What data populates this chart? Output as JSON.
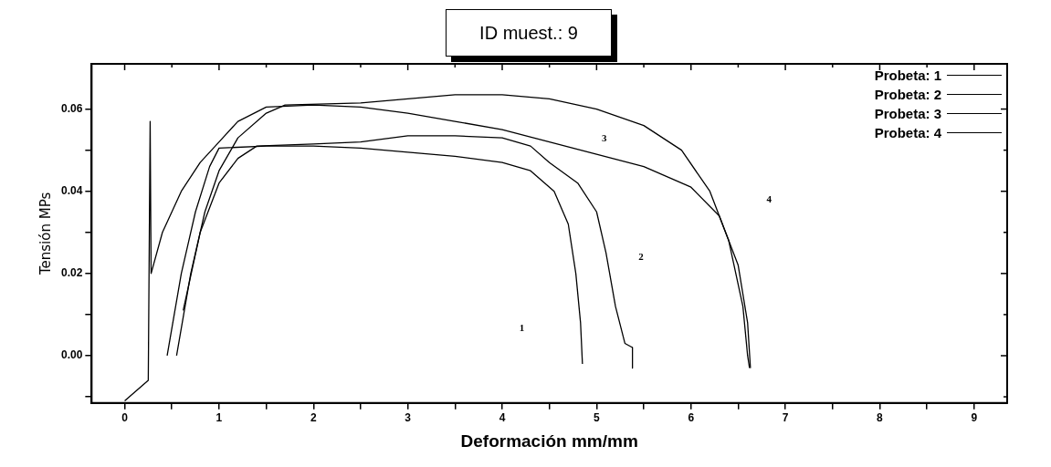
{
  "chart_data": {
    "type": "line",
    "title": "ID muest.: 9",
    "xlabel": "Deformación mm/mm",
    "ylabel": "Tensión MPs",
    "xlim": [
      -0.35,
      9.35
    ],
    "xticks": [
      0,
      {
        "value": 0.5,
        "label": null
      },
      1,
      {
        "value": 1.5,
        "label": null
      },
      2,
      {
        "value": 2.5,
        "label": null
      },
      3,
      {
        "value": 3.5,
        "label": null
      },
      4,
      {
        "value": 4.5,
        "label": null
      },
      5,
      {
        "value": 5.5,
        "label": null
      },
      6,
      {
        "value": 6.5,
        "label": null
      },
      7,
      {
        "value": 7.5,
        "label": null
      },
      8,
      {
        "value": 8.5,
        "label": null
      },
      9
    ],
    "ylim": [
      -0.0115,
      0.071
    ],
    "yticks": [
      {
        "value": -0.01,
        "label": null
      },
      {
        "value": 0,
        "label": "0.00"
      },
      {
        "value": 0.01,
        "label": null
      },
      {
        "value": 0.02,
        "label": "0.02"
      },
      {
        "value": 0.03,
        "label": null
      },
      {
        "value": 0.04,
        "label": "0.04"
      },
      {
        "value": 0.05,
        "label": null
      },
      {
        "value": 0.06,
        "label": "0.06"
      }
    ],
    "grid": false,
    "legend": "top right",
    "marker": "none",
    "line_style": "solid",
    "series": [
      {
        "name": "Probeta: 1",
        "color": "#000000",
        "x": [
          0.45,
          0.6,
          0.75,
          0.9,
          1.0,
          1.5,
          2,
          2.5,
          3,
          3.5,
          4,
          4.3,
          4.55,
          4.7,
          4.78,
          4.83,
          4.85
        ],
        "values": [
          0.0,
          0.02,
          0.035,
          0.046,
          0.0505,
          0.051,
          0.051,
          0.0505,
          0.0495,
          0.0485,
          0.047,
          0.045,
          0.04,
          0.032,
          0.02,
          0.008,
          -0.002
        ]
      },
      {
        "name": "Probeta: 2",
        "color": "#000000",
        "x": [
          0.62,
          0.8,
          1.0,
          1.2,
          1.4,
          2,
          2.5,
          3,
          3.5,
          4,
          4.3,
          4.5,
          4.8,
          5.0,
          5.1,
          5.2,
          5.3,
          5.38,
          5.38
        ],
        "values": [
          0.011,
          0.03,
          0.042,
          0.048,
          0.051,
          0.0515,
          0.052,
          0.0535,
          0.0535,
          0.053,
          0.051,
          0.047,
          0.042,
          0.035,
          0.025,
          0.012,
          0.003,
          0.002,
          -0.003
        ]
      },
      {
        "name": "Probeta: 3",
        "color": "#000000",
        "x": [
          0.55,
          0.7,
          0.85,
          1.0,
          1.2,
          1.5,
          1.7,
          2.5,
          3,
          3.5,
          4,
          4.5,
          5,
          5.5,
          5.9,
          6.2,
          6.4,
          6.55,
          6.6,
          6.62
        ],
        "values": [
          0.0,
          0.02,
          0.035,
          0.045,
          0.053,
          0.059,
          0.061,
          0.0615,
          0.0625,
          0.0635,
          0.0635,
          0.0625,
          0.06,
          0.056,
          0.05,
          0.04,
          0.028,
          0.012,
          0.0,
          -0.003
        ]
      },
      {
        "name": "Probeta: 4",
        "color": "#000000",
        "x": [
          0,
          0.1,
          0.25,
          0.27,
          0.28,
          0.4,
          0.6,
          0.8,
          1.0,
          1.2,
          1.5,
          2,
          2.5,
          3,
          3.5,
          4,
          4.5,
          5,
          5.5,
          6,
          6.3,
          6.5,
          6.6,
          6.63
        ],
        "values": [
          -0.011,
          -0.009,
          -0.006,
          0.057,
          0.02,
          0.03,
          0.04,
          0.047,
          0.052,
          0.057,
          0.0605,
          0.061,
          0.0605,
          0.059,
          0.057,
          0.055,
          0.052,
          0.049,
          0.046,
          0.041,
          0.034,
          0.022,
          0.008,
          -0.003
        ]
      }
    ],
    "annotations": [
      "1",
      "2",
      "3",
      "4"
    ]
  }
}
